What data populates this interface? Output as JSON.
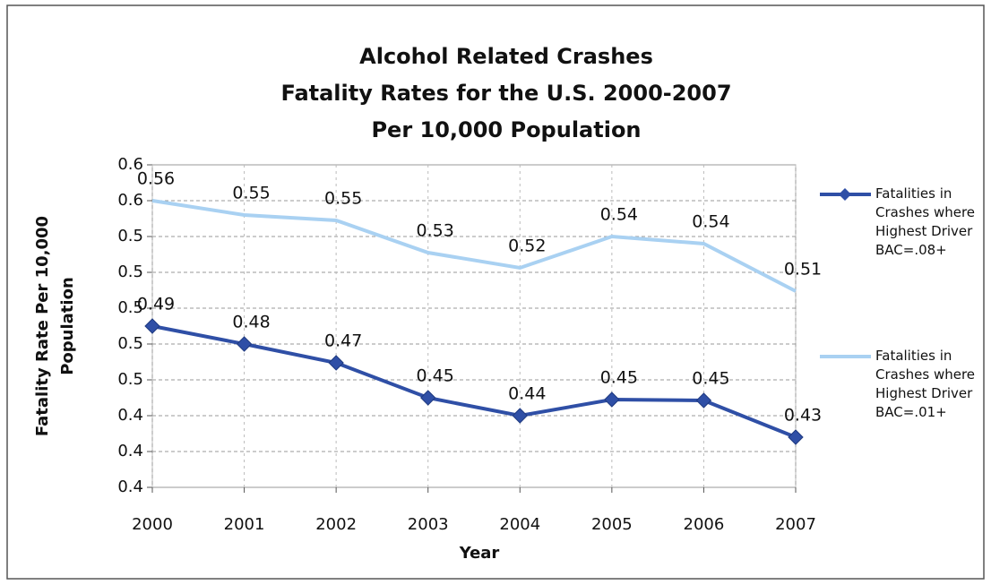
{
  "chart_data": {
    "type": "line",
    "title": [
      "Alcohol Related Crashes",
      "Fatality Rates for the U.S. 2000-2007",
      "Per 10,000 Population"
    ],
    "x_label": "Year",
    "y_label": [
      "Fatality Rate Per 10,000",
      "Population"
    ],
    "categories": [
      "2000",
      "2001",
      "2002",
      "2003",
      "2004",
      "2005",
      "2006",
      "2007"
    ],
    "series": [
      {
        "name": "Fatalities in Crashes where Highest Driver BAC=.08+",
        "color": "#2f4fa6",
        "marker": "diamond",
        "values": [
          0.49,
          0.48,
          0.4695,
          0.45,
          0.44,
          0.449,
          0.4485,
          0.428
        ],
        "value_labels": [
          "0.49",
          "0.48",
          "0.47",
          "0.45",
          "0.44",
          "0.45",
          "0.45",
          "0.43"
        ]
      },
      {
        "name": "Fatalities in Crashes where Highest Driver BAC=.01+",
        "color": "#a9d1f2",
        "marker": "none",
        "values": [
          0.56,
          0.552,
          0.549,
          0.531,
          0.5225,
          0.54,
          0.536,
          0.5095
        ],
        "value_labels": [
          "0.56",
          "0.55",
          "0.55",
          "0.53",
          "0.52",
          "0.54",
          "0.54",
          "0.51"
        ]
      }
    ],
    "ylim": [
      0.4,
      0.58
    ],
    "yticks": [
      {
        "value": 0.4,
        "label": "0.4"
      },
      {
        "value": 0.42,
        "label": "0.4"
      },
      {
        "value": 0.44,
        "label": "0.4"
      },
      {
        "value": 0.46,
        "label": "0.5"
      },
      {
        "value": 0.48,
        "label": "0.5"
      },
      {
        "value": 0.5,
        "label": "0.5"
      },
      {
        "value": 0.52,
        "label": "0.5"
      },
      {
        "value": 0.54,
        "label": "0.5"
      },
      {
        "value": 0.56,
        "label": "0.6"
      },
      {
        "value": 0.58,
        "label": "0.6"
      }
    ],
    "grid": true,
    "legend": "right"
  }
}
